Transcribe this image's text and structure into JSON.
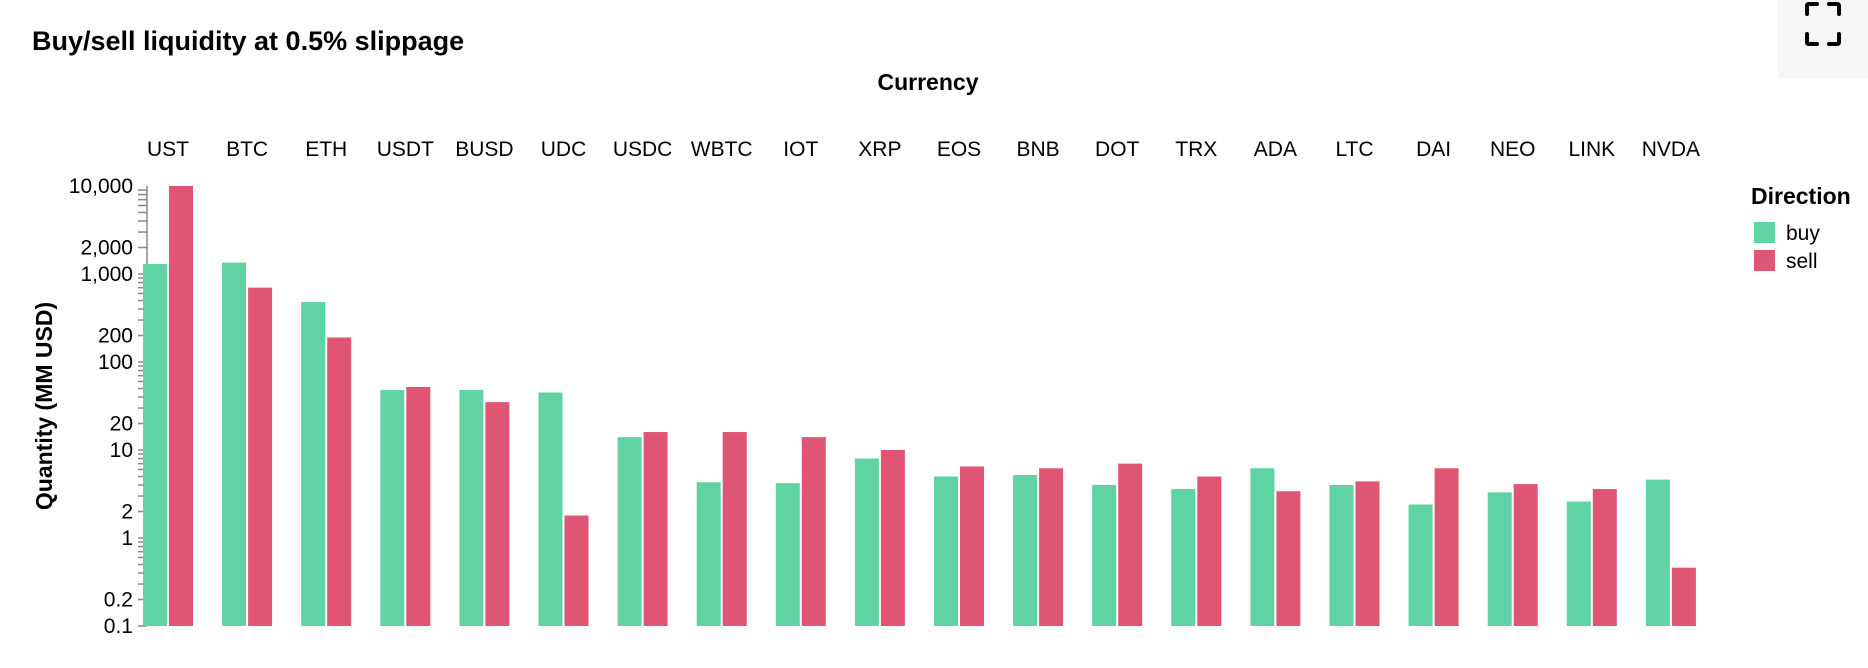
{
  "title": "Buy/sell liquidity at 0.5% slippage",
  "icons": {
    "fullscreen": "fullscreen-icon"
  },
  "colors": {
    "buy": "#5fd3a2",
    "sell": "#de5673",
    "axis": "#888888"
  },
  "chart_data": {
    "type": "bar",
    "title": "Buy/sell liquidity at 0.5% slippage",
    "column_header": "Currency",
    "xlabel": "Currency",
    "ylabel": "Quantity (MM USD)",
    "yscale": "log",
    "ylim": [
      0.1,
      10000
    ],
    "yticks": [
      {
        "value": 10000,
        "label": "10,000"
      },
      {
        "value": 2000,
        "label": "2,000"
      },
      {
        "value": 1000,
        "label": "1,000"
      },
      {
        "value": 200,
        "label": "200"
      },
      {
        "value": 100,
        "label": "100"
      },
      {
        "value": 20,
        "label": "20"
      },
      {
        "value": 10,
        "label": "10"
      },
      {
        "value": 2,
        "label": "2"
      },
      {
        "value": 1,
        "label": "1"
      },
      {
        "value": 0.2,
        "label": "0.2"
      },
      {
        "value": 0.1,
        "label": "0.1"
      }
    ],
    "categories": [
      "UST",
      "BTC",
      "ETH",
      "USDT",
      "BUSD",
      "UDC",
      "USDC",
      "WBTC",
      "IOT",
      "XRP",
      "EOS",
      "BNB",
      "DOT",
      "TRX",
      "ADA",
      "LTC",
      "DAI",
      "NEO",
      "LINK",
      "NVDA"
    ],
    "legend_title": "Direction",
    "legend_position": "right",
    "grid": false,
    "series": [
      {
        "name": "buy",
        "color": "#5fd3a2",
        "values": [
          1300,
          1350,
          480,
          48,
          48,
          45,
          14,
          4.3,
          4.2,
          8,
          5,
          5.2,
          4,
          3.6,
          6.2,
          4,
          2.4,
          3.3,
          2.6,
          4.6
        ]
      },
      {
        "name": "sell",
        "color": "#de5673",
        "values": [
          10000,
          700,
          190,
          52,
          35,
          1.8,
          16,
          16,
          14,
          10,
          6.5,
          6.2,
          7,
          5,
          3.4,
          4.4,
          6.2,
          4.1,
          3.6,
          0.46
        ]
      }
    ]
  }
}
